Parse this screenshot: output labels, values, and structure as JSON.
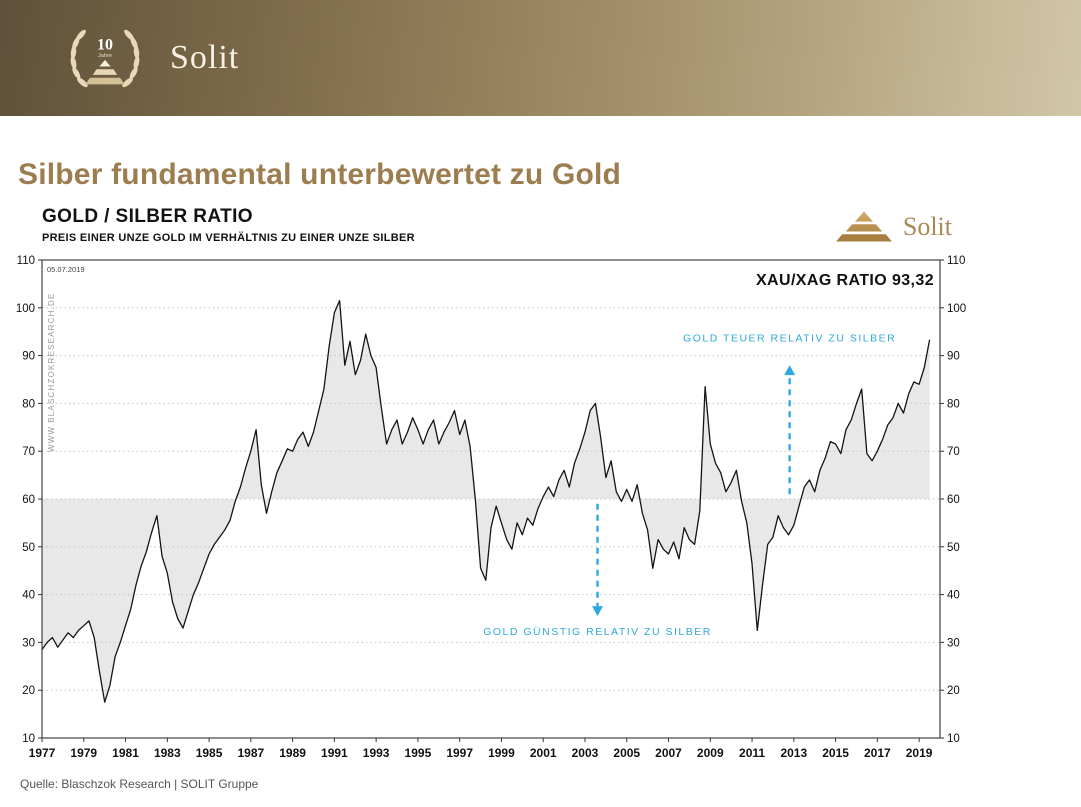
{
  "header": {
    "brand": "Solit",
    "badge_years": "10",
    "badge_sub": "Jahre"
  },
  "page": {
    "title": "Silber fundamental unterbewertet zu Gold",
    "source": "Quelle: Blaschzok Research | SOLIT Gruppe"
  },
  "chart": {
    "title": "GOLD / SILBER RATIO",
    "subtitle": "PREIS EINER UNZE GOLD IM VERHÄLTNIS ZU EINER UNZE SILBER",
    "logo_text": "Solit",
    "date_label": "05.07.2019",
    "ratio_label": "XAU/XAG RATIO 93,32",
    "watermark": "WWW.BLASCHZOKRESEARCH.DE"
  },
  "chart_data": {
    "type": "line",
    "title": "GOLD / SILBER RATIO",
    "subtitle": "PREIS EINER UNZE GOLD IM VERHÄLTNIS ZU EINER UNZE SILBER",
    "series_name": "XAU/XAG Ratio",
    "x_start": 1977.0,
    "x_step": 0.25,
    "x_end": 2019.5,
    "xlim": [
      1977,
      2020
    ],
    "ylim": [
      10,
      110
    ],
    "y_ticks": [
      10,
      20,
      30,
      40,
      50,
      60,
      70,
      80,
      90,
      100,
      110
    ],
    "x_ticks": [
      1977,
      1979,
      1981,
      1983,
      1985,
      1987,
      1989,
      1991,
      1993,
      1995,
      1997,
      1999,
      2001,
      2003,
      2005,
      2007,
      2009,
      2011,
      2013,
      2015,
      2017,
      2019
    ],
    "baseline": 60,
    "last_value": 93.32,
    "grid": "horizontal-dotted",
    "line_color": "#141414",
    "fill_color": "#e8e8e8",
    "annotation_color": "#2fa9dc",
    "values": [
      28.5,
      30,
      31,
      29,
      30.5,
      32,
      31,
      32.5,
      33.5,
      34.5,
      31,
      24,
      17.5,
      21,
      27,
      30,
      33.5,
      37,
      42,
      46,
      49,
      53,
      56.5,
      48,
      44.5,
      38.5,
      35,
      33,
      36.5,
      40,
      42.5,
      45.5,
      48.5,
      50.5,
      52,
      53.5,
      55.5,
      59.5,
      62.5,
      66.5,
      70,
      74.5,
      63,
      57,
      61.5,
      65.5,
      68,
      70.5,
      70,
      72.5,
      74,
      71,
      74,
      78.5,
      83,
      92,
      99,
      101.5,
      88,
      93,
      86,
      89,
      94.5,
      90,
      87.5,
      79,
      71.5,
      74.5,
      76.5,
      71.5,
      74,
      77,
      74.5,
      71.5,
      74.5,
      76.5,
      71.5,
      74,
      76,
      78.5,
      73.5,
      76.5,
      71,
      60,
      45.5,
      43,
      54,
      58.5,
      55,
      51.5,
      49.5,
      55,
      52.5,
      56,
      54.5,
      58,
      60.5,
      62.5,
      60.5,
      64,
      66,
      62.5,
      67.5,
      70.5,
      74,
      78.5,
      80,
      73,
      64.5,
      68,
      61.5,
      59.5,
      62,
      59.5,
      63,
      57,
      53.5,
      45.5,
      51.5,
      49.5,
      48.5,
      51,
      47.5,
      54,
      51.5,
      50.5,
      57.5,
      83.5,
      71.5,
      67.5,
      65.5,
      61.5,
      63.5,
      66,
      59.5,
      55,
      46.5,
      32.5,
      42,
      50.5,
      52,
      56.5,
      54,
      52.5,
      54.5,
      58.5,
      62.5,
      64,
      61.5,
      66,
      68.5,
      72,
      71.5,
      69.5,
      74.5,
      76.5,
      80,
      83,
      69.5,
      68,
      70,
      72.5,
      75.5,
      77,
      80,
      78,
      82,
      84.5,
      84,
      87.5,
      93.3
    ],
    "annotations": [
      {
        "text": "GOLD TEUER RELATIV ZU SILBER",
        "x": 2012.8,
        "arrow_from": 61,
        "arrow_to": 88,
        "label_y": 93,
        "direction": "up"
      },
      {
        "text": "GOLD GÜNSTIG RELATIV ZU SILBER",
        "x": 2003.6,
        "arrow_from": 59,
        "arrow_to": 35.5,
        "label_y": 31.5,
        "direction": "down"
      }
    ]
  }
}
